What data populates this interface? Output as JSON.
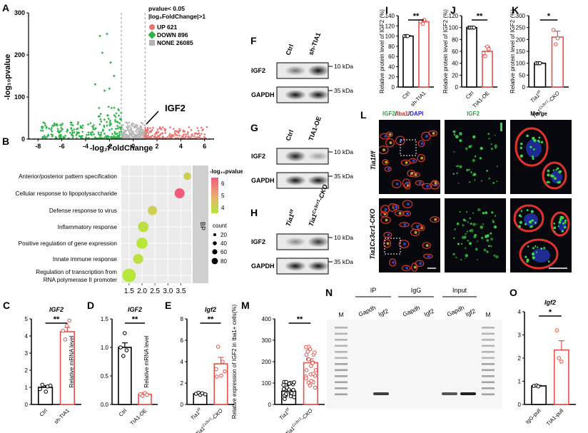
{
  "panels": {
    "A": "A",
    "B": "B",
    "C": "C",
    "D": "D",
    "E": "E",
    "F": "F",
    "G": "G",
    "H": "H",
    "I": "I",
    "J": "J",
    "K": "K",
    "L": "L",
    "M": "M",
    "N": "N",
    "O": "O"
  },
  "volcano": {
    "xlabel": "-log₂FoldChange",
    "ylabel": "-log₁₀pvalue",
    "xticks": [
      -8,
      -6,
      -4,
      -2,
      0,
      2,
      4,
      6
    ],
    "yticks": [
      0,
      100,
      200,
      300
    ],
    "legend_title_1": "pvalue< 0.05",
    "legend_title_2": "|log₂FoldChange|>1",
    "legend": [
      {
        "label": "UP 621",
        "color": "#e8736f"
      },
      {
        "label": "DOWN 896",
        "color": "#2db34a"
      },
      {
        "label": "NONE 26085",
        "color": "#b4b4b4"
      }
    ],
    "annotation": "IGF2",
    "colors": {
      "up": "#e8736f",
      "down": "#2db34a",
      "none": "#b4b4b4"
    }
  },
  "dotplot": {
    "terms": [
      "Anterior/posterior pattern specification",
      "Cellular response to lipopolysaccharide",
      "Defense response to virus",
      "Inflammatory response",
      "Positive regulation of gene expression",
      "Innate immune response",
      "Regulation of transcription from",
      "RNA polymerase II promoter"
    ],
    "xticks": [
      "1.5",
      "2.0",
      "2.5",
      "3.0",
      "3.5"
    ],
    "side_label": "BP",
    "colorbar_title": "-log₁₀pvalue",
    "colorbar_ticks": [
      "6",
      "5",
      "4"
    ],
    "size_title": "count",
    "size_ticks": [
      "20",
      "40",
      "60",
      "80"
    ]
  },
  "blots": {
    "F": {
      "lanes": [
        "Ctrl",
        "sh-TIA1"
      ],
      "rows": [
        "IGF2",
        "GAPDH"
      ],
      "kda": [
        "10 kDa",
        "35 kDa"
      ]
    },
    "G": {
      "lanes": [
        "Ctrl",
        "TIA1-OE"
      ],
      "rows": [
        "IGF2",
        "GAPDH"
      ],
      "kda": [
        "10 kDa",
        "35 kDa"
      ]
    },
    "H": {
      "lanes": [
        "Tia1f/f",
        "Tia1Cx3cr1-CKO"
      ],
      "rows": [
        "IGF2",
        "GAPDH"
      ],
      "kda": [
        "10 kDa",
        "35 kDa"
      ]
    }
  },
  "microscopy": {
    "col1": "IGF2/Iba1/DAPI",
    "col1_parts": [
      "IGF2",
      "/",
      "Iba1",
      "/",
      "DAPI"
    ],
    "col2": "IGF2",
    "col3": "Merge",
    "row1": "Tia1f/f",
    "row2": "Tia1Cx3cr1-CKO"
  },
  "gel": {
    "groups": [
      "IP",
      "IgG",
      "Input"
    ],
    "lanes": [
      "M",
      "Gapdh",
      "Igf2",
      "Gapdh",
      "Igf2",
      "Gapdh",
      "Igf2",
      "M"
    ]
  },
  "chart_data": [
    {
      "panel": "C",
      "type": "bar",
      "title": "IGF2",
      "ylabel": "Relative mRNA  level",
      "categories": [
        "Ctrl",
        "sh-TIA1"
      ],
      "values": [
        1.0,
        4.25
      ],
      "yticks": [
        0,
        1,
        2,
        3,
        4,
        5
      ],
      "ylim": [
        0,
        5
      ],
      "significance": "**"
    },
    {
      "panel": "D",
      "type": "bar",
      "title": "IGF2",
      "ylabel": "Relative mRNA  level",
      "categories": [
        "Ctrl",
        "TIA1-OE"
      ],
      "values": [
        1.0,
        0.18
      ],
      "yticks": [
        "0.0",
        "0.5",
        "1.0",
        "1.5"
      ],
      "ylim": [
        0,
        1.5
      ],
      "significance": "**"
    },
    {
      "panel": "E",
      "type": "bar",
      "title": "Igf2",
      "ylabel": "Relative mRNA level",
      "categories": [
        "Tia1f/f",
        "Tia1Cx3cr1-CKO"
      ],
      "values": [
        1.0,
        3.8
      ],
      "yticks": [
        0,
        2,
        4,
        6,
        8
      ],
      "ylim": [
        0,
        8
      ],
      "significance": "**"
    },
    {
      "panel": "I",
      "type": "bar",
      "title": "",
      "ylabel": "Relative protein level of IGF2 (%)",
      "categories": [
        "Ctrl",
        "sh-TIA1"
      ],
      "values": [
        100,
        128
      ],
      "yticks": [
        0,
        20,
        40,
        60,
        80,
        100,
        120,
        140
      ],
      "ylim": [
        0,
        140
      ],
      "significance": "**"
    },
    {
      "panel": "J",
      "type": "bar",
      "title": "",
      "ylabel": "Relative protein level of IGF2 (%)",
      "categories": [
        "Ctrl",
        "TIA1-OE"
      ],
      "values": [
        100,
        60
      ],
      "yticks": [
        0,
        20,
        40,
        60,
        80,
        100,
        120
      ],
      "ylim": [
        0,
        120
      ],
      "significance": "**"
    },
    {
      "panel": "K",
      "type": "bar",
      "title": "",
      "ylabel": "Relative protein level of IGF2 (%)",
      "categories": [
        "Tia1f/f",
        "Tia1Cx3cr1-CKO"
      ],
      "values": [
        100,
        210
      ],
      "yticks": [
        0,
        50,
        100,
        150,
        200,
        250,
        300
      ],
      "ylim": [
        0,
        300
      ],
      "significance": "*"
    },
    {
      "panel": "M",
      "type": "bar",
      "title": "",
      "ylabel": "Relative expression of IGF2 in Iba1+ cells(%)",
      "categories": [
        "Tia1f/f",
        "Tia1Cx3cr1-CKO"
      ],
      "values": [
        62,
        195
      ],
      "yticks": [
        0,
        100,
        200,
        300,
        400
      ],
      "ylim": [
        0,
        400
      ],
      "significance": "**"
    },
    {
      "panel": "O",
      "type": "bar",
      "title": "Igf2",
      "ylabel": "% Input",
      "categories": [
        "IgG-pull",
        "TIA1-pull"
      ],
      "values": [
        0.8,
        2.35
      ],
      "yticks": [
        0,
        1,
        2,
        3,
        4
      ],
      "ylim": [
        0,
        4
      ],
      "significance": "*"
    },
    {
      "panel": "B",
      "type": "scatter",
      "title": "",
      "xlabel": "",
      "ylabel": "",
      "categories": [
        "Anterior/posterior pattern specification",
        "Cellular response to lipopolysaccharide",
        "Defense response to virus",
        "Inflammatory response",
        "Positive regulation of gene expression",
        "Innate immune response",
        "Regulation of transcription from RNA polymerase II promoter"
      ],
      "x": [
        3.75,
        3.45,
        2.4,
        2.05,
        2.0,
        1.85,
        1.5
      ],
      "count": [
        12,
        28,
        22,
        32,
        38,
        28,
        62
      ],
      "pvalue": [
        4,
        6.5,
        4,
        3.5,
        3.3,
        3.5,
        3.3
      ],
      "xlim": [
        1.2,
        3.9
      ]
    }
  ]
}
